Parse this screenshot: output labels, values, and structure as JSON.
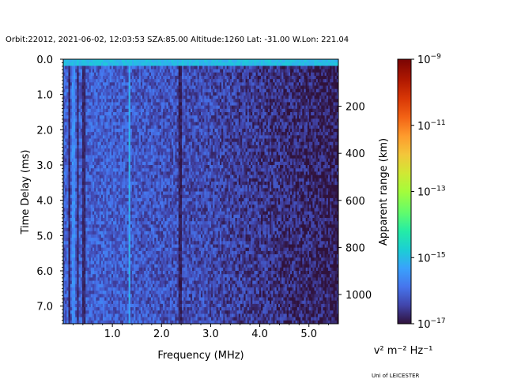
{
  "chart_data": {
    "type": "heatmap",
    "title": "Orbit:22012, 2021-06-02, 12:03:53 SZA:85.00 Altitude:1260 Lat: -31.00 W.Lon: 221.04",
    "xlabel": "Frequency (MHz)",
    "ylabel": "Time Delay (ms)",
    "y2label": "Apparent range (km)",
    "xlim": [
      0.0,
      5.6
    ],
    "ylim": [
      7.5,
      0.0
    ],
    "x_ticks": [
      1.0,
      2.0,
      3.0,
      4.0,
      5.0
    ],
    "x_tick_labels": [
      "1.0",
      "2.0",
      "3.0",
      "4.0",
      "5.0"
    ],
    "y_ticks": [
      0.0,
      1.0,
      2.0,
      3.0,
      4.0,
      5.0,
      6.0,
      7.0
    ],
    "y_tick_labels": [
      "0.0",
      "1.0",
      "2.0",
      "3.0",
      "4.0",
      "5.0",
      "6.0",
      "7.0"
    ],
    "y2_range_km_per_ms": 149.9,
    "y2_ticks": [
      200,
      400,
      600,
      800,
      1000
    ],
    "y2_tick_labels": [
      "200",
      "400",
      "600",
      "800",
      "1000"
    ],
    "colorbar": {
      "label": "v² m⁻² Hz⁻¹",
      "scale": "log",
      "range": [
        1e-17,
        1e-09
      ],
      "ticks": [
        -17,
        -15,
        -13,
        -11,
        -9
      ],
      "tick_labels": [
        {
          "base": "10",
          "exp": "−17"
        },
        {
          "base": "10",
          "exp": "−15"
        },
        {
          "base": "10",
          "exp": "−13"
        },
        {
          "base": "10",
          "exp": "−11"
        },
        {
          "base": "10",
          "exp": "−9"
        }
      ]
    },
    "grid": {
      "freq_bins": 160,
      "delay_bins": 80,
      "background_log_intensity_low_freq": -16.1,
      "background_log_intensity_high_freq": -16.9,
      "bright_bands": [
        {
          "freq_mhz": 0.2,
          "log_intensity": -15.6
        },
        {
          "freq_mhz": 1.35,
          "log_intensity": -15.2
        }
      ],
      "dark_bands": [
        {
          "freq_mhz": 0.12,
          "log_intensity": -17.0
        },
        {
          "freq_mhz": 0.3,
          "log_intensity": -16.9
        },
        {
          "freq_mhz": 0.42,
          "log_intensity": -16.9
        },
        {
          "freq_mhz": 2.38,
          "log_intensity": -17.0
        }
      ],
      "top_row_log_intensity": -15.0
    },
    "footer": "Uni of LEICESTER"
  }
}
